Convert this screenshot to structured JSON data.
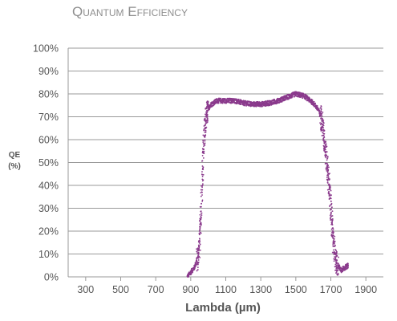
{
  "chart_data": {
    "type": "scatter",
    "title": "Quantum Efficiency",
    "xlabel": "Lambda (µm)",
    "ylabel_line1": "QE",
    "ylabel_line2": "(%)",
    "xlim": [
      200,
      2000
    ],
    "ylim": [
      0,
      100
    ],
    "xticks": [
      300,
      500,
      700,
      900,
      1100,
      1300,
      1500,
      1700,
      1900
    ],
    "yticks": [
      0,
      10,
      20,
      30,
      40,
      50,
      60,
      70,
      80,
      90,
      100
    ],
    "ytick_suffix": "%",
    "grid": "horizontal",
    "series": [
      {
        "color": "#8a3a8c",
        "profile": [
          [
            880,
            0
          ],
          [
            900,
            2
          ],
          [
            920,
            4
          ],
          [
            940,
            8
          ],
          [
            950,
            15
          ],
          [
            960,
            30
          ],
          [
            970,
            50
          ],
          [
            980,
            65
          ],
          [
            995,
            72
          ],
          [
            1010,
            75
          ],
          [
            1050,
            77
          ],
          [
            1100,
            77
          ],
          [
            1150,
            77
          ],
          [
            1200,
            76
          ],
          [
            1250,
            75.5
          ],
          [
            1300,
            75.5
          ],
          [
            1350,
            76
          ],
          [
            1400,
            77
          ],
          [
            1450,
            78.5
          ],
          [
            1500,
            80
          ],
          [
            1550,
            79
          ],
          [
            1600,
            76
          ],
          [
            1630,
            73
          ],
          [
            1650,
            68
          ],
          [
            1670,
            55
          ],
          [
            1690,
            40
          ],
          [
            1705,
            25
          ],
          [
            1715,
            15
          ],
          [
            1725,
            8
          ],
          [
            1740,
            5
          ],
          [
            1760,
            3
          ],
          [
            1780,
            4
          ],
          [
            1800,
            5
          ]
        ]
      }
    ]
  }
}
